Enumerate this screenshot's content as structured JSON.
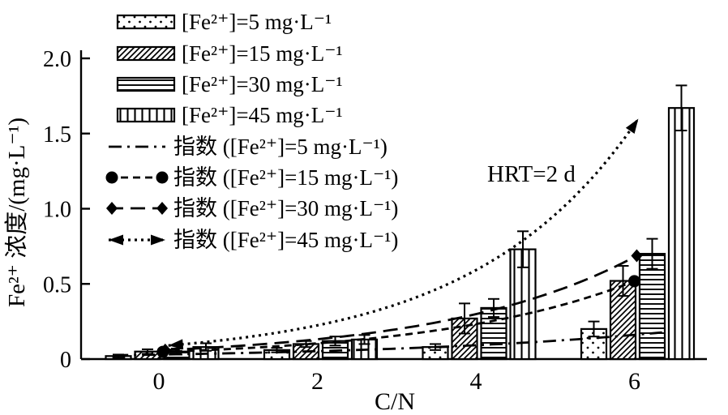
{
  "figure": {
    "background": "#ffffff",
    "ink_color": "#000000",
    "legend_position": "top-left"
  },
  "chart_data": {
    "type": "bar",
    "title": "",
    "xlabel": "C/N",
    "ylabel": "Fe²⁺ 浓度/(mg·L⁻¹)",
    "annotation": "HRT=2 d",
    "categories": [
      0,
      2,
      4,
      6
    ],
    "x_ticks": [
      "0",
      "2",
      "4",
      "6"
    ],
    "y_ticks": [
      "0",
      "0.5",
      "1.0",
      "1.5",
      "2.0"
    ],
    "xlim": [
      -1,
      6.9
    ],
    "ylim": [
      0,
      2.0
    ],
    "grid": false,
    "bar_series": [
      {
        "name": "[Fe²⁺]=5 mg·L⁻¹",
        "pattern": "dots",
        "values": [
          0.02,
          0.06,
          0.08,
          0.2
        ],
        "errors": [
          0.01,
          0.015,
          0.02,
          0.05
        ]
      },
      {
        "name": "[Fe²⁺]=15 mg·L⁻¹",
        "pattern": "diagonal",
        "values": [
          0.05,
          0.1,
          0.27,
          0.52
        ],
        "errors": [
          0.015,
          0.02,
          0.1,
          0.1
        ]
      },
      {
        "name": "[Fe²⁺]=30 mg·L⁻¹",
        "pattern": "horizontal",
        "values": [
          0.05,
          0.12,
          0.34,
          0.7
        ],
        "errors": [
          0.02,
          0.03,
          0.06,
          0.1
        ]
      },
      {
        "name": "[Fe²⁺]=45 mg·L⁻¹",
        "pattern": "vertical",
        "values": [
          0.08,
          0.13,
          0.73,
          1.67
        ],
        "errors": [
          0.025,
          0.03,
          0.12,
          0.15
        ]
      }
    ],
    "fit_curves": [
      {
        "name": "指数 ([Fe²⁺]=5 mg·L⁻¹)",
        "style": "dashdot",
        "marker": "none",
        "a": 0.03,
        "b": 0.28,
        "x_range": [
          -0.55,
          6.35
        ]
      },
      {
        "name": "指数 ([Fe²⁺]=15 mg·L⁻¹)",
        "style": "dash",
        "marker": "circle",
        "a": 0.047,
        "b": 0.4,
        "x_range": [
          0.05,
          6.0
        ]
      },
      {
        "name": "指数 ([Fe²⁺]=30 mg·L⁻¹)",
        "style": "longdash",
        "marker": "diamond",
        "a": 0.058,
        "b": 0.41,
        "x_range": [
          0.08,
          6.03
        ]
      },
      {
        "name": "指数 ([Fe²⁺]=45 mg·L⁻¹)",
        "style": "dotted",
        "marker": "arrow",
        "a": 0.085,
        "b": 0.485,
        "x_range": [
          0.12,
          6.05
        ]
      }
    ]
  }
}
